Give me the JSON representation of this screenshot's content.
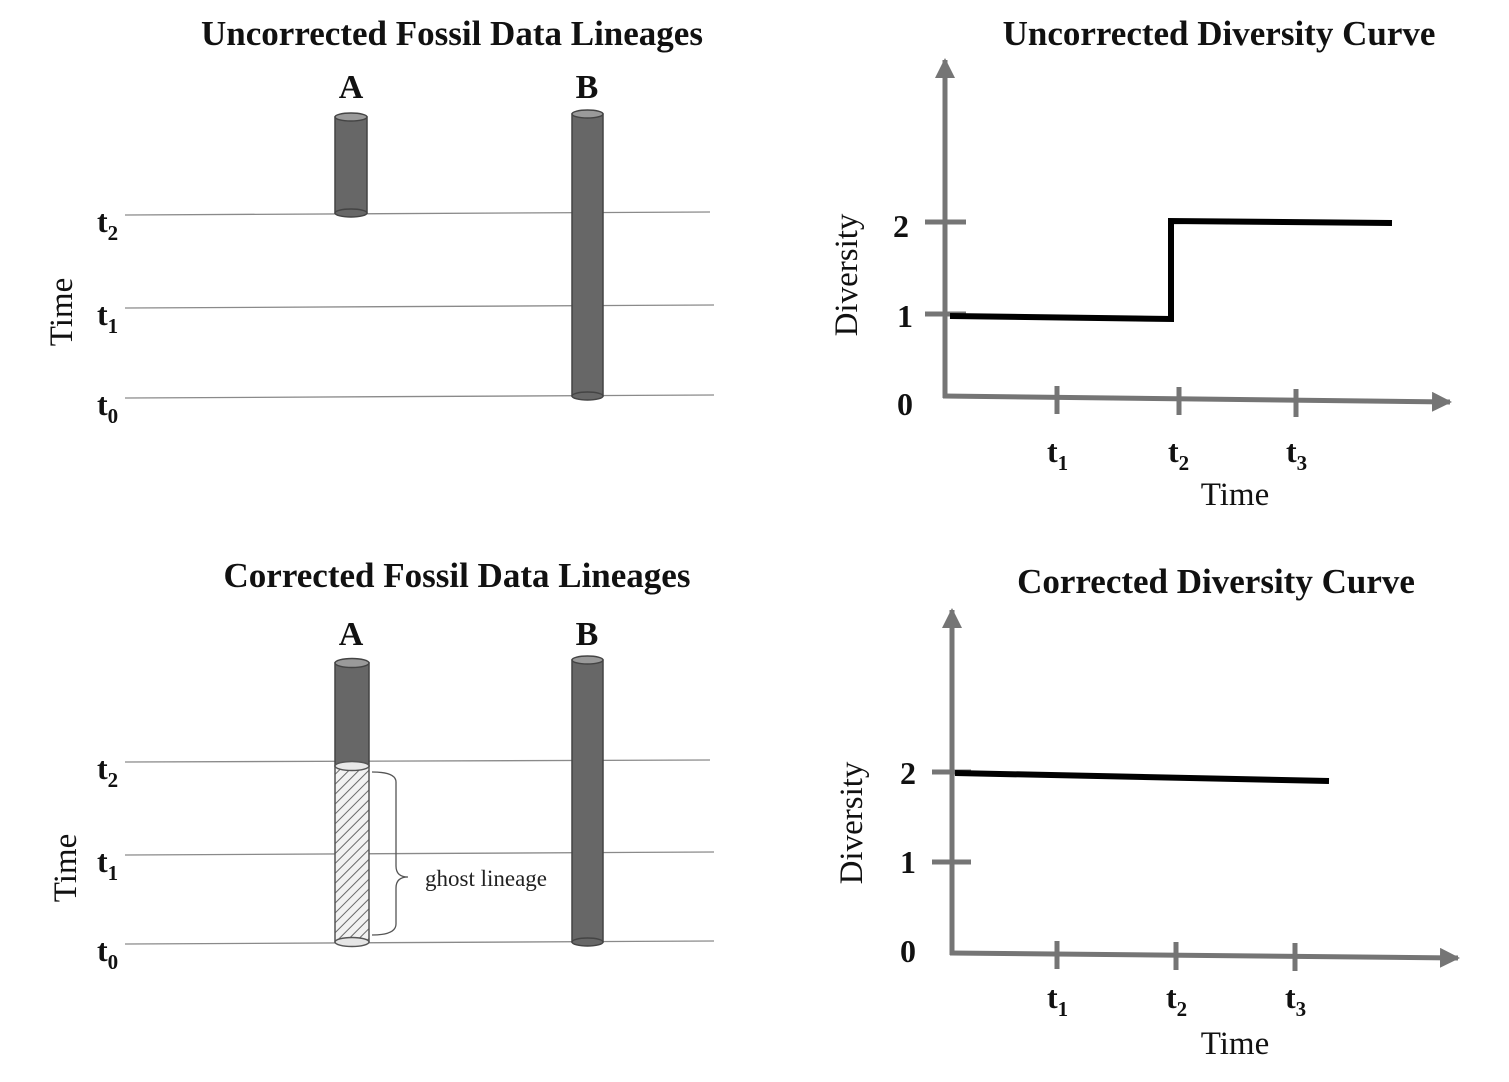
{
  "uncorrected_lineages": {
    "title": "Uncorrected Fossil Data Lineages",
    "axis_label": "Time",
    "time_labels": [
      {
        "main": "t",
        "sub": "2"
      },
      {
        "main": "t",
        "sub": "1"
      },
      {
        "main": "t",
        "sub": "0"
      }
    ],
    "lineages": [
      {
        "label": "A"
      },
      {
        "label": "B"
      }
    ]
  },
  "corrected_lineages": {
    "title": "Corrected Fossil Data Lineages",
    "axis_label": "Time",
    "time_labels": [
      {
        "main": "t",
        "sub": "2"
      },
      {
        "main": "t",
        "sub": "1"
      },
      {
        "main": "t",
        "sub": "0"
      }
    ],
    "lineages": [
      {
        "label": "A"
      },
      {
        "label": "B"
      }
    ],
    "ghost_label": "ghost lineage"
  },
  "uncorrected_curve": {
    "title": "Uncorrected Diversity Curve",
    "ylabel": "Diversity",
    "xlabel": "Time",
    "yticks": [
      "0",
      "1",
      "2"
    ],
    "xticks": [
      {
        "main": "t",
        "sub": "1"
      },
      {
        "main": "t",
        "sub": "2"
      },
      {
        "main": "t",
        "sub": "3"
      }
    ]
  },
  "corrected_curve": {
    "title": "Corrected Diversity Curve",
    "ylabel": "Diversity",
    "xlabel": "Time",
    "yticks": [
      "0",
      "1",
      "2"
    ],
    "xticks": [
      {
        "main": "t",
        "sub": "1"
      },
      {
        "main": "t",
        "sub": "2"
      },
      {
        "main": "t",
        "sub": "3"
      }
    ]
  },
  "colors": {
    "lineage_fill": "#676767",
    "lineage_stroke": "#444444",
    "cap_fill": "#9a9a9a",
    "axis": "#757575",
    "curve": "#000000",
    "time_line": "#8a8a8a"
  }
}
